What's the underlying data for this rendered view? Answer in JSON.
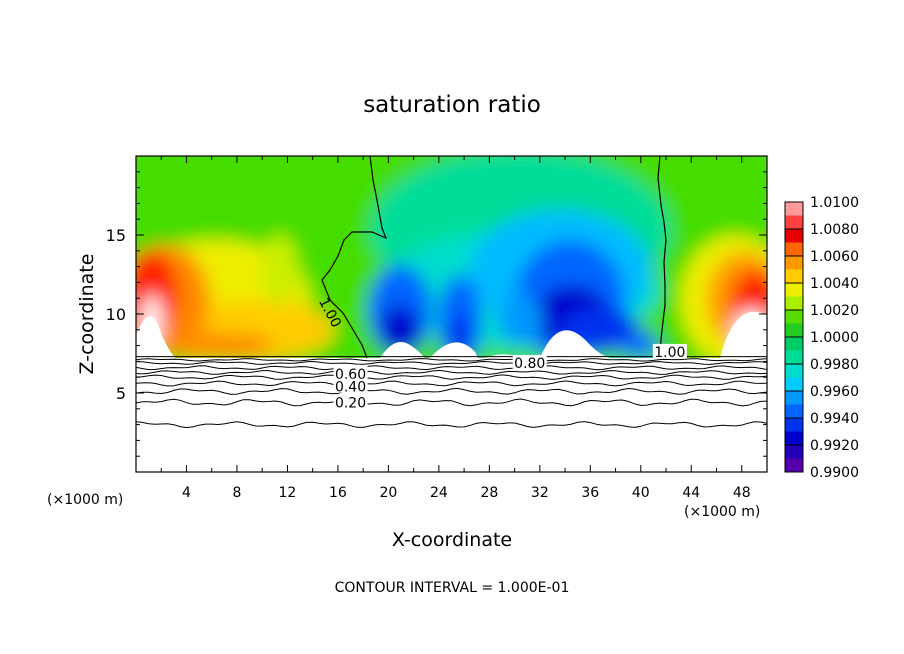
{
  "chart_data": {
    "type": "heatmap",
    "title": "saturation ratio",
    "xlabel": "X-coordinate",
    "ylabel": "Z-coordinate",
    "x_unit_left": "(×1000 m)",
    "x_unit_right": "(×1000 m)",
    "footnote": "CONTOUR INTERVAL = 1.000E-01",
    "xlim": [
      0,
      50
    ],
    "ylim": [
      0,
      20
    ],
    "x_ticks": [
      "4",
      "8",
      "12",
      "16",
      "20",
      "24",
      "28",
      "32",
      "36",
      "40",
      "44",
      "48"
    ],
    "x_tick_values": [
      4,
      8,
      12,
      16,
      20,
      24,
      28,
      32,
      36,
      40,
      44,
      48
    ],
    "y_ticks": [
      "5",
      "10",
      "15"
    ],
    "y_tick_values": [
      5,
      10,
      15
    ],
    "colorbar": {
      "labels": [
        "1.0100",
        "1.0080",
        "1.0060",
        "1.0040",
        "1.0020",
        "1.0000",
        "0.9980",
        "0.9960",
        "0.9940",
        "0.9920",
        "0.9900"
      ],
      "values": [
        1.01,
        1.008,
        1.006,
        1.004,
        1.002,
        1.0,
        0.998,
        0.996,
        0.994,
        0.992,
        0.99
      ],
      "colors": [
        "#ff9a9a",
        "#ff4040",
        "#e60000",
        "#ff6600",
        "#ff9900",
        "#ffcc00",
        "#eeee00",
        "#aaee00",
        "#55dd00",
        "#22cc22",
        "#00cc66",
        "#00dd99",
        "#00ddcc",
        "#00ccff",
        "#0099ff",
        "#0066ff",
        "#0033ee",
        "#0000cc",
        "#2200bb",
        "#5500aa"
      ]
    },
    "contour_labels": [
      {
        "text": "1.00",
        "x": 15.4,
        "z": 10.1
      },
      {
        "text": "1.00",
        "x": 42.3,
        "z": 7.6
      },
      {
        "text": "0.80",
        "x": 31.2,
        "z": 6.9
      },
      {
        "text": "0.60",
        "x": 17.0,
        "z": 6.2
      },
      {
        "text": "0.40",
        "x": 17.0,
        "z": 5.4
      },
      {
        "text": "0.20",
        "x": 17.0,
        "z": 4.4
      }
    ],
    "contour_levels_below": [
      {
        "z": 7.1,
        "amp": 0.05
      },
      {
        "z": 6.9,
        "amp": 0.06
      },
      {
        "z": 6.6,
        "amp": 0.08
      },
      {
        "z": 6.3,
        "amp": 0.08
      },
      {
        "z": 6.0,
        "amp": 0.09
      },
      {
        "z": 5.6,
        "amp": 0.1
      },
      {
        "z": 5.1,
        "amp": 0.12
      },
      {
        "z": 4.4,
        "amp": 0.14
      },
      {
        "z": 3.0,
        "amp": 0.12
      }
    ],
    "cloud_base_z": 7.3
  }
}
